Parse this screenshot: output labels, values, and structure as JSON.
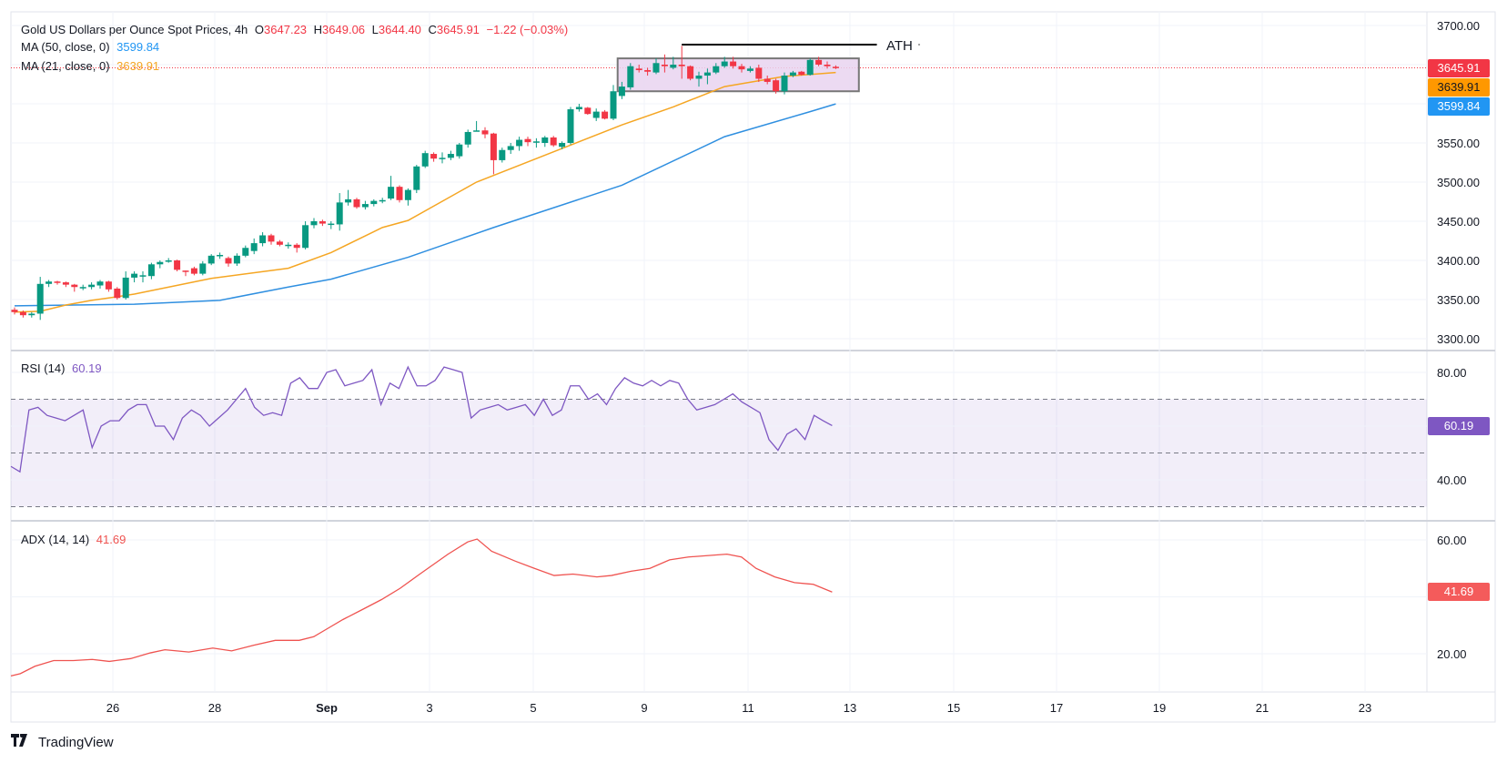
{
  "header": {
    "symbol": "Gold US Dollars per Ounce Spot Prices, 4h",
    "open_label": "O",
    "open": "3647.23",
    "high_label": "H",
    "high": "3649.06",
    "low_label": "L",
    "low": "3644.40",
    "close_label": "C",
    "close": "3645.91",
    "change": "−1.22 (−0.03%)",
    "ma50_label": "MA (50, close, 0)",
    "ma50_value": "3599.84",
    "ma21_label": "MA (21, close, 0)",
    "ma21_value": "3639.91"
  },
  "rsi_legend": {
    "label": "RSI (14)",
    "value": "60.19"
  },
  "adx_legend": {
    "label": "ADX (14, 14)",
    "value": "41.69"
  },
  "badges": {
    "last": "3645.91",
    "ma21": "3639.91",
    "ma50": "3599.84",
    "rsi": "60.19",
    "adx": "41.69"
  },
  "annotation": {
    "ath_label": "ATH",
    "ath_price": 3674,
    "range_box": {
      "top": 3658,
      "bottom": 3616,
      "start_index": 70.5,
      "end_index": 98.7
    },
    "ath_start_index": 78,
    "ath_end_index": 100.8
  },
  "brand": {
    "name": "TradingView",
    "mark": "TV"
  },
  "colors": {
    "up": "#089981",
    "down": "#f23645",
    "ma50": "#2f8fe0",
    "ma21": "#f5a623",
    "rsi": "#7e57c2",
    "adx": "#ef5350",
    "box_fill": "#e9d4f0",
    "box_stroke": "#777777"
  },
  "chart_data": {
    "type": "candlestick",
    "title": "Gold US Dollars per Ounce Spot Prices, 4h",
    "x_tick_labels": [
      "26",
      "28",
      "Sep",
      "3",
      "5",
      "9",
      "11",
      "13",
      "15",
      "17",
      "19",
      "21",
      "23"
    ],
    "price_axis": {
      "range": [
        3300,
        3700
      ],
      "ticks": [
        "3700.00",
        "3550.00",
        "3500.00",
        "3450.00",
        "3400.00",
        "3350.00",
        "3300.00"
      ],
      "grid_values": [
        3700,
        3650,
        3600,
        3550,
        3500,
        3450,
        3400,
        3350,
        3300
      ]
    },
    "candles_ohlc": [
      [
        3337,
        3340,
        3331,
        3334
      ],
      [
        3334,
        3336,
        3327,
        3330
      ],
      [
        3330,
        3334,
        3327,
        3332
      ],
      [
        3332,
        3379,
        3324,
        3370
      ],
      [
        3370,
        3375,
        3366,
        3373
      ],
      [
        3373,
        3374,
        3369,
        3372
      ],
      [
        3372,
        3373,
        3366,
        3369
      ],
      [
        3369,
        3370,
        3360,
        3366
      ],
      [
        3366,
        3369,
        3362,
        3366
      ],
      [
        3366,
        3372,
        3363,
        3369
      ],
      [
        3368,
        3375,
        3364,
        3373
      ],
      [
        3373,
        3374,
        3360,
        3363
      ],
      [
        3364,
        3366,
        3350,
        3352
      ],
      [
        3352,
        3386,
        3350,
        3378
      ],
      [
        3378,
        3386,
        3372,
        3383
      ],
      [
        3381,
        3386,
        3372,
        3381
      ],
      [
        3380,
        3397,
        3376,
        3395
      ],
      [
        3395,
        3400,
        3390,
        3398
      ],
      [
        3399,
        3403,
        3397,
        3400
      ],
      [
        3400,
        3401,
        3386,
        3388
      ],
      [
        3387,
        3387,
        3380,
        3386
      ],
      [
        3390,
        3392,
        3381,
        3383
      ],
      [
        3383,
        3399,
        3381,
        3396
      ],
      [
        3396,
        3408,
        3394,
        3406
      ],
      [
        3407,
        3410,
        3402,
        3407
      ],
      [
        3403,
        3405,
        3392,
        3396
      ],
      [
        3396,
        3409,
        3393,
        3406
      ],
      [
        3406,
        3419,
        3404,
        3416
      ],
      [
        3412,
        3428,
        3408,
        3422
      ],
      [
        3422,
        3436,
        3418,
        3432
      ],
      [
        3432,
        3434,
        3420,
        3424
      ],
      [
        3424,
        3426,
        3418,
        3420
      ],
      [
        3420,
        3423,
        3415,
        3420
      ],
      [
        3420,
        3422,
        3410,
        3416
      ],
      [
        3416,
        3450,
        3414,
        3445
      ],
      [
        3445,
        3454,
        3441,
        3450
      ],
      [
        3450,
        3452,
        3444,
        3447
      ],
      [
        3447,
        3450,
        3440,
        3447
      ],
      [
        3446,
        3486,
        3438,
        3474
      ],
      [
        3474,
        3490,
        3470,
        3478
      ],
      [
        3478,
        3480,
        3466,
        3468
      ],
      [
        3468,
        3476,
        3465,
        3472
      ],
      [
        3472,
        3478,
        3469,
        3476
      ],
      [
        3476,
        3480,
        3473,
        3477
      ],
      [
        3479,
        3508,
        3477,
        3494
      ],
      [
        3494,
        3496,
        3474,
        3477
      ],
      [
        3477,
        3492,
        3470,
        3490
      ],
      [
        3490,
        3522,
        3486,
        3520
      ],
      [
        3520,
        3540,
        3518,
        3537
      ],
      [
        3536,
        3538,
        3526,
        3530
      ],
      [
        3530,
        3538,
        3524,
        3531
      ],
      [
        3531,
        3540,
        3528,
        3536
      ],
      [
        3533,
        3550,
        3530,
        3548
      ],
      [
        3548,
        3567,
        3544,
        3564
      ],
      [
        3566,
        3578,
        3565,
        3566
      ],
      [
        3566,
        3570,
        3556,
        3561
      ],
      [
        3562,
        3563,
        3510,
        3528
      ],
      [
        3528,
        3544,
        3525,
        3541
      ],
      [
        3541,
        3550,
        3536,
        3546
      ],
      [
        3546,
        3558,
        3540,
        3554
      ],
      [
        3555,
        3558,
        3546,
        3551
      ],
      [
        3551,
        3556,
        3544,
        3552
      ],
      [
        3550,
        3559,
        3545,
        3557
      ],
      [
        3557,
        3559,
        3545,
        3547
      ],
      [
        3545,
        3552,
        3542,
        3550
      ],
      [
        3550,
        3596,
        3548,
        3593
      ],
      [
        3593,
        3600,
        3590,
        3596
      ],
      [
        3595,
        3596,
        3586,
        3587
      ],
      [
        3582,
        3594,
        3578,
        3590
      ],
      [
        3590,
        3592,
        3580,
        3581
      ],
      [
        3581,
        3624,
        3579,
        3616
      ],
      [
        3610,
        3628,
        3606,
        3622
      ],
      [
        3621,
        3652,
        3618,
        3648
      ],
      [
        3645,
        3650,
        3640,
        3643
      ],
      [
        3643,
        3646,
        3636,
        3641
      ],
      [
        3640,
        3658,
        3638,
        3652
      ],
      [
        3650,
        3663,
        3640,
        3648
      ],
      [
        3646,
        3660,
        3644,
        3650
      ],
      [
        3650,
        3674,
        3632,
        3648
      ],
      [
        3648,
        3649,
        3630,
        3632
      ],
      [
        3632,
        3641,
        3622,
        3636
      ],
      [
        3636,
        3645,
        3625,
        3640
      ],
      [
        3640,
        3652,
        3638,
        3648
      ],
      [
        3648,
        3660,
        3646,
        3654
      ],
      [
        3654,
        3660,
        3645,
        3648
      ],
      [
        3648,
        3651,
        3640,
        3644
      ],
      [
        3642,
        3648,
        3640,
        3645
      ],
      [
        3646,
        3650,
        3628,
        3632
      ],
      [
        3632,
        3636,
        3625,
        3628
      ],
      [
        3630,
        3632,
        3613,
        3616
      ],
      [
        3616,
        3640,
        3612,
        3636
      ],
      [
        3636,
        3642,
        3634,
        3640
      ],
      [
        3641,
        3642,
        3636,
        3637
      ],
      [
        3637,
        3658,
        3636,
        3656
      ],
      [
        3656,
        3660,
        3648,
        3650
      ],
      [
        3650,
        3654,
        3645,
        3648
      ],
      [
        3647.23,
        3649.06,
        3644.4,
        3645.91
      ]
    ],
    "ma50": [
      [
        0,
        3342
      ],
      [
        14,
        3344
      ],
      [
        24,
        3349
      ],
      [
        32,
        3366
      ],
      [
        37,
        3376
      ],
      [
        46,
        3404
      ],
      [
        56,
        3442
      ],
      [
        71,
        3496
      ],
      [
        83,
        3558
      ],
      [
        93,
        3590
      ],
      [
        96,
        3599.84
      ]
    ],
    "ma21": [
      [
        0,
        3334
      ],
      [
        3,
        3335
      ],
      [
        6,
        3343
      ],
      [
        9,
        3349
      ],
      [
        11,
        3352
      ],
      [
        14,
        3357
      ],
      [
        23,
        3377
      ],
      [
        32,
        3390
      ],
      [
        37,
        3410
      ],
      [
        43,
        3442
      ],
      [
        46,
        3451
      ],
      [
        54,
        3500
      ],
      [
        64,
        3543
      ],
      [
        71,
        3573
      ],
      [
        77,
        3596
      ],
      [
        83,
        3622
      ],
      [
        90,
        3635
      ],
      [
        96,
        3639.91
      ]
    ],
    "rsi": {
      "range": [
        25,
        85
      ],
      "ticks": [
        "80.00",
        "40.00"
      ],
      "grid_values": [
        80,
        60,
        40
      ],
      "upper": 70,
      "middle": 50,
      "lower": 30,
      "values": [
        45,
        43,
        66,
        67,
        64,
        63,
        62,
        64,
        66,
        52,
        60,
        62,
        62,
        66,
        68,
        68,
        60,
        60,
        55,
        63,
        66,
        64,
        60,
        63,
        66,
        70,
        74,
        67,
        64,
        65,
        64,
        76,
        78,
        74,
        74,
        80,
        81,
        75,
        76,
        77,
        81,
        68,
        76,
        74,
        82,
        75,
        75,
        77,
        82,
        81,
        80,
        63,
        66,
        67,
        68,
        66,
        67,
        68,
        64,
        70,
        64,
        66,
        75,
        75,
        70,
        72,
        68,
        74,
        78,
        76,
        75,
        77,
        75,
        77,
        76,
        70,
        66,
        67,
        68,
        70,
        72,
        69,
        67,
        65,
        55,
        51,
        57,
        59,
        55,
        64,
        62,
        60.19
      ]
    },
    "adx": {
      "range": [
        8,
        66
      ],
      "ticks": [
        "60.00",
        "20.00"
      ],
      "grid_values": [
        60,
        40,
        20
      ],
      "points": [
        [
          0,
          12.2
        ],
        [
          1.1,
          13
        ],
        [
          2.8,
          15.6
        ],
        [
          5,
          17.6
        ],
        [
          7.3,
          17.6
        ],
        [
          9.5,
          18
        ],
        [
          11.5,
          17.3
        ],
        [
          14,
          18.3
        ],
        [
          16.3,
          20.3
        ],
        [
          18,
          21.4
        ],
        [
          20.8,
          20.6
        ],
        [
          23.6,
          22
        ],
        [
          25.8,
          21
        ],
        [
          28.4,
          23
        ],
        [
          30.9,
          24.7
        ],
        [
          33.7,
          24.7
        ],
        [
          35.4,
          26
        ],
        [
          37.1,
          29
        ],
        [
          38.8,
          32
        ],
        [
          41,
          35.4
        ],
        [
          43.3,
          39
        ],
        [
          45.5,
          43
        ],
        [
          47.8,
          48
        ],
        [
          51.1,
          55
        ],
        [
          53.4,
          59.3
        ],
        [
          54.5,
          60.3
        ],
        [
          56.2,
          56
        ],
        [
          59,
          52.5
        ],
        [
          61.2,
          50
        ],
        [
          63.5,
          47.5
        ],
        [
          65.7,
          48
        ],
        [
          68.5,
          47
        ],
        [
          70.2,
          47.5
        ],
        [
          72.5,
          49
        ],
        [
          74.7,
          50
        ],
        [
          77,
          53
        ],
        [
          79.2,
          54
        ],
        [
          83.7,
          55
        ],
        [
          85.4,
          54
        ],
        [
          87.1,
          50
        ],
        [
          89.3,
          47
        ],
        [
          91.6,
          45
        ],
        [
          93.8,
          44.4
        ],
        [
          96,
          41.69
        ]
      ]
    }
  }
}
